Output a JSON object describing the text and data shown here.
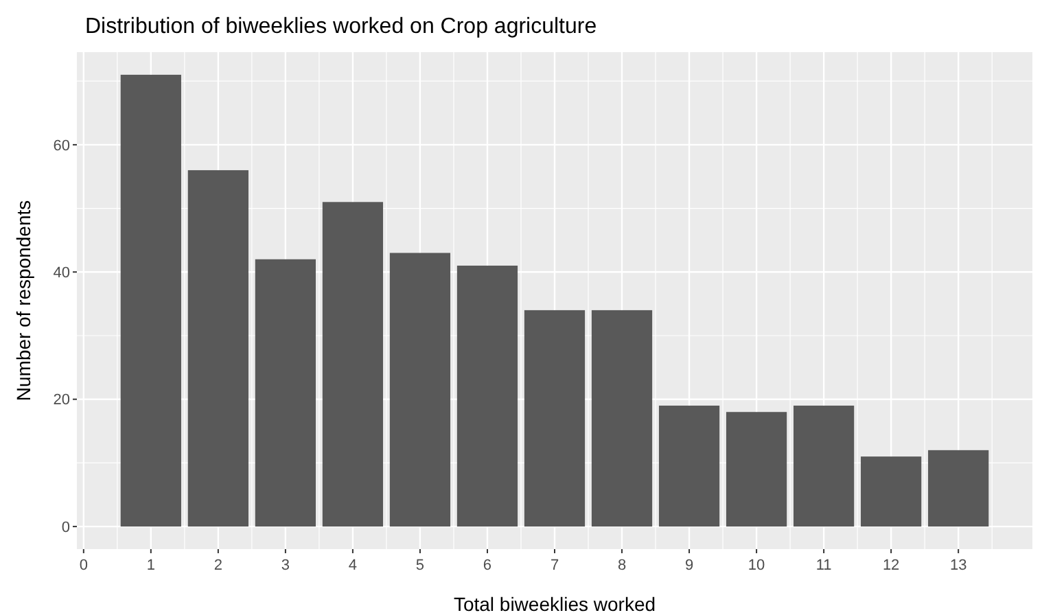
{
  "chart_data": {
    "type": "bar",
    "title": "Distribution of biweeklies worked on Crop agriculture",
    "xlabel": "Total biweeklies worked",
    "ylabel": "Number of respondents",
    "x": [
      1,
      2,
      3,
      4,
      5,
      6,
      7,
      8,
      9,
      10,
      11,
      12,
      13
    ],
    "values": [
      71,
      56,
      42,
      51,
      43,
      41,
      34,
      34,
      19,
      18,
      19,
      11,
      12
    ],
    "color": "#595959",
    "xlim": [
      -0.1,
      14.1
    ],
    "xticks": [
      0,
      1,
      2,
      3,
      4,
      5,
      6,
      7,
      8,
      9,
      10,
      11,
      12,
      13
    ],
    "ylim": [
      -3.55,
      74.55
    ],
    "yticks": [
      0,
      20,
      40,
      60
    ],
    "grid": true
  }
}
